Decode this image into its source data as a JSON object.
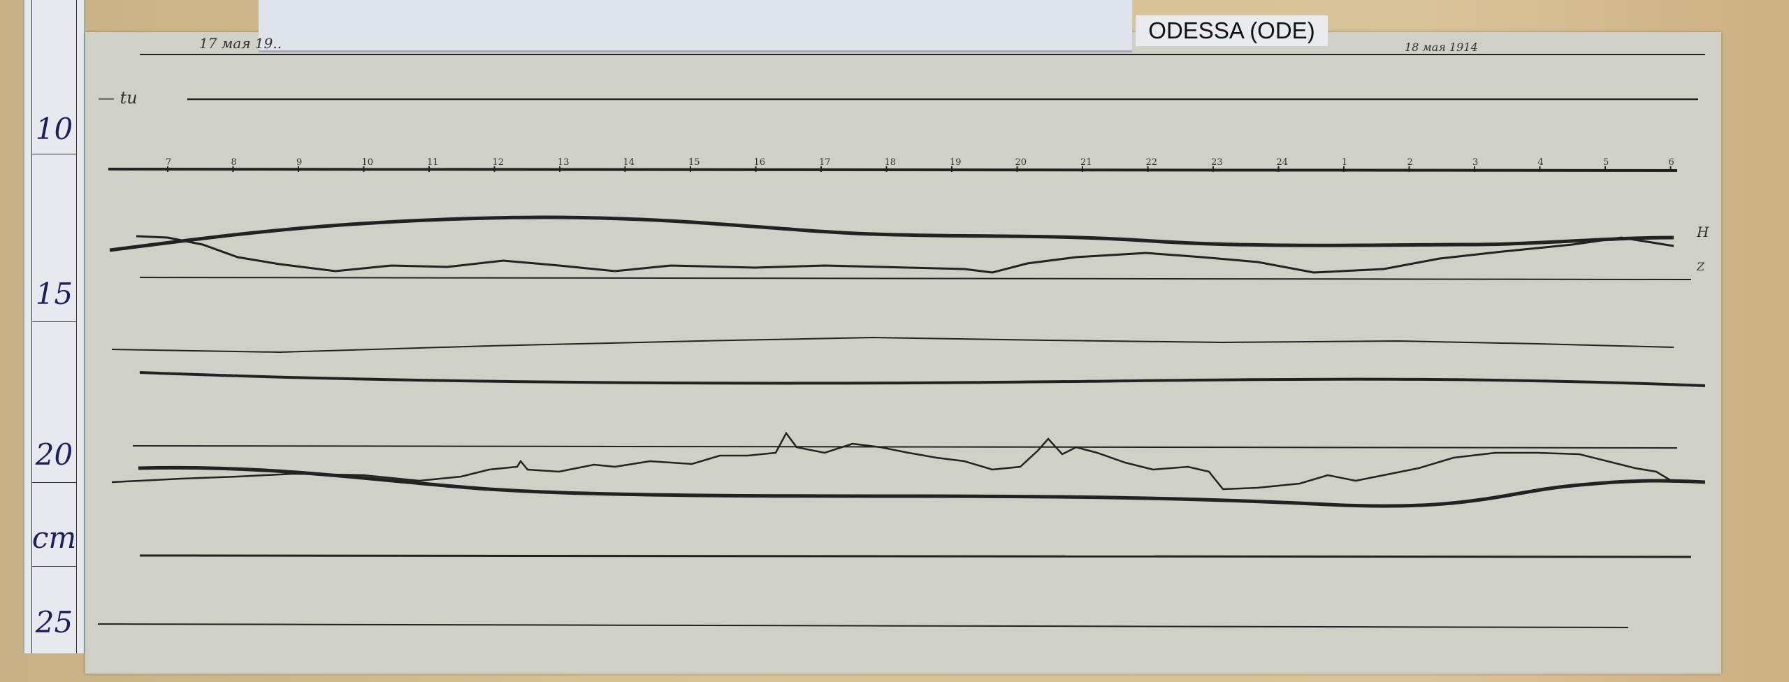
{
  "station_label": "ODESSA (ODE)",
  "ruler": {
    "marks": [
      "10",
      "15",
      "20",
      "25"
    ],
    "unit": "cm"
  },
  "handwritten": {
    "date_left": "17 мая 19..",
    "date_right": "18 мая 1914",
    "baseline_label": "— tu",
    "trace_h": "H",
    "trace_z": "Z"
  },
  "time_axis": {
    "hours": [
      "7",
      "8",
      "9",
      "10",
      "11",
      "12",
      "13",
      "14",
      "15",
      "16",
      "17",
      "18",
      "19",
      "20",
      "21",
      "22",
      "23",
      "24",
      "1",
      "2",
      "3",
      "4",
      "5",
      "6"
    ]
  },
  "colors": {
    "paper": "#cfd0c6",
    "ink": "#1a1a1a",
    "board": "#d7c296"
  }
}
